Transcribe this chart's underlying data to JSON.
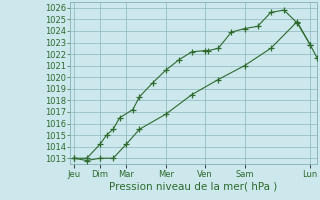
{
  "title": "Pression niveau de la mer( hPa )",
  "ylabel_ticks": [
    1013,
    1014,
    1015,
    1016,
    1017,
    1018,
    1019,
    1020,
    1021,
    1022,
    1023,
    1024,
    1025,
    1026
  ],
  "ylim": [
    1012.5,
    1026.5
  ],
  "day_labels": [
    "Jeu",
    "Dim",
    "Mar",
    "Mer",
    "Ven",
    "Sam",
    "Lun"
  ],
  "day_positions": [
    0,
    16,
    32,
    56,
    80,
    104,
    144
  ],
  "xlim": [
    -2,
    148
  ],
  "line1_x": [
    0,
    8,
    16,
    20,
    24,
    28,
    36,
    40,
    48,
    56,
    64,
    72,
    80,
    82,
    88,
    96,
    104,
    112,
    120,
    128,
    136,
    144
  ],
  "line1_y": [
    1013.0,
    1013.0,
    1014.2,
    1015.0,
    1015.5,
    1016.5,
    1017.2,
    1018.3,
    1019.5,
    1020.6,
    1021.5,
    1022.2,
    1022.3,
    1022.3,
    1022.5,
    1023.9,
    1024.2,
    1024.4,
    1025.6,
    1025.8,
    1024.7,
    1022.8
  ],
  "line2_x": [
    0,
    8,
    16,
    24,
    32,
    40,
    56,
    72,
    88,
    104,
    120,
    136,
    144,
    148
  ],
  "line2_y": [
    1013.0,
    1012.8,
    1013.0,
    1013.0,
    1014.2,
    1015.5,
    1016.8,
    1018.5,
    1019.8,
    1021.0,
    1022.5,
    1024.8,
    1022.8,
    1021.7
  ],
  "line_color": "#2d6a2d",
  "bg_color": "#cce8ec",
  "grid_color_major": "#8ab8bc",
  "grid_color_minor": "#b8d8dc",
  "marker": "+",
  "marker_size": 4,
  "marker_lw": 0.9,
  "line_lw": 0.8,
  "tick_label_fontsize": 6.0,
  "title_fontsize": 7.5
}
